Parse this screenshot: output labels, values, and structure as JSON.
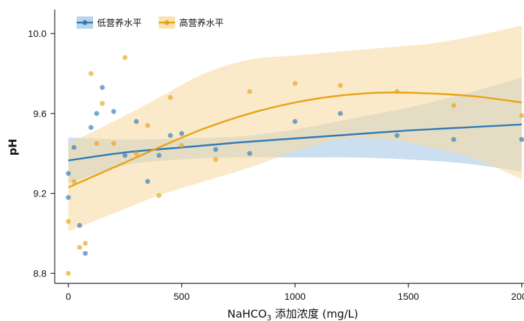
{
  "chart_data": {
    "type": "scatter",
    "xlabel": {
      "prefix": "NaHCO",
      "sub": "3",
      "suffix": " 添加浓度 (mg/L)"
    },
    "ylabel": "pH",
    "xlim": [
      -60,
      2010
    ],
    "ylim": [
      8.75,
      10.12
    ],
    "xticks": [
      0,
      500,
      1000,
      1500,
      2000
    ],
    "yticks": [
      8.8,
      9.2,
      9.6,
      10.0
    ],
    "ytick_labels": [
      "8.8",
      "9.2",
      "9.6",
      "10.0"
    ],
    "grid": false,
    "legend_position": "top-left",
    "series": [
      {
        "name": "低营养水平",
        "color": "#2e7ab8",
        "band_color": "#a9c9e6",
        "points": [
          [
            0,
            9.3
          ],
          [
            0,
            9.18
          ],
          [
            25,
            9.43
          ],
          [
            50,
            9.04
          ],
          [
            75,
            8.9
          ],
          [
            100,
            9.53
          ],
          [
            125,
            9.6
          ],
          [
            150,
            9.73
          ],
          [
            200,
            9.61
          ],
          [
            250,
            9.39
          ],
          [
            300,
            9.56
          ],
          [
            350,
            9.26
          ],
          [
            400,
            9.39
          ],
          [
            450,
            9.49
          ],
          [
            500,
            9.5
          ],
          [
            650,
            9.42
          ],
          [
            800,
            9.4
          ],
          [
            1000,
            9.56
          ],
          [
            1200,
            9.6
          ],
          [
            1450,
            9.49
          ],
          [
            1700,
            9.47
          ],
          [
            2000,
            9.47
          ]
        ],
        "fit": [
          [
            0,
            9.365
          ],
          [
            250,
            9.405
          ],
          [
            500,
            9.43
          ],
          [
            750,
            9.455
          ],
          [
            1000,
            9.475
          ],
          [
            1250,
            9.495
          ],
          [
            1500,
            9.515
          ],
          [
            1750,
            9.53
          ],
          [
            2000,
            9.545
          ]
        ],
        "band_upper": [
          [
            0,
            9.48
          ],
          [
            250,
            9.47
          ],
          [
            500,
            9.475
          ],
          [
            750,
            9.485
          ],
          [
            1000,
            9.52
          ],
          [
            1250,
            9.575
          ],
          [
            1500,
            9.63
          ],
          [
            1750,
            9.7
          ],
          [
            2000,
            9.78
          ]
        ],
        "band_lower": [
          [
            0,
            9.25
          ],
          [
            250,
            9.34
          ],
          [
            500,
            9.37
          ],
          [
            750,
            9.38
          ],
          [
            1000,
            9.38
          ],
          [
            1250,
            9.38
          ],
          [
            1500,
            9.37
          ],
          [
            1750,
            9.35
          ],
          [
            2000,
            9.31
          ]
        ]
      },
      {
        "name": "高营养水平",
        "color": "#e8a317",
        "band_color": "#f6dca5",
        "points": [
          [
            0,
            9.06
          ],
          [
            0,
            8.8
          ],
          [
            25,
            9.26
          ],
          [
            50,
            8.93
          ],
          [
            75,
            8.95
          ],
          [
            100,
            9.8
          ],
          [
            125,
            9.45
          ],
          [
            150,
            9.65
          ],
          [
            200,
            9.45
          ],
          [
            250,
            9.88
          ],
          [
            300,
            9.4
          ],
          [
            350,
            9.54
          ],
          [
            400,
            9.19
          ],
          [
            450,
            9.68
          ],
          [
            500,
            9.44
          ],
          [
            650,
            9.37
          ],
          [
            800,
            9.71
          ],
          [
            1000,
            9.75
          ],
          [
            1200,
            9.74
          ],
          [
            1450,
            9.71
          ],
          [
            1700,
            9.64
          ],
          [
            2000,
            9.59
          ]
        ],
        "fit": [
          [
            0,
            9.23
          ],
          [
            200,
            9.33
          ],
          [
            400,
            9.43
          ],
          [
            600,
            9.525
          ],
          [
            800,
            9.6
          ],
          [
            1000,
            9.655
          ],
          [
            1200,
            9.69
          ],
          [
            1400,
            9.705
          ],
          [
            1600,
            9.7
          ],
          [
            1800,
            9.685
          ],
          [
            2000,
            9.655
          ]
        ],
        "band_upper": [
          [
            0,
            9.45
          ],
          [
            200,
            9.56
          ],
          [
            400,
            9.68
          ],
          [
            600,
            9.8
          ],
          [
            800,
            9.87
          ],
          [
            1000,
            9.89
          ],
          [
            1200,
            9.91
          ],
          [
            1400,
            9.93
          ],
          [
            1600,
            9.95
          ],
          [
            1800,
            9.99
          ],
          [
            2000,
            10.04
          ]
        ],
        "band_lower": [
          [
            0,
            9.01
          ],
          [
            200,
            9.1
          ],
          [
            400,
            9.19
          ],
          [
            600,
            9.26
          ],
          [
            800,
            9.33
          ],
          [
            1000,
            9.41
          ],
          [
            1200,
            9.47
          ],
          [
            1400,
            9.47
          ],
          [
            1600,
            9.43
          ],
          [
            1800,
            9.37
          ],
          [
            2000,
            9.27
          ]
        ]
      }
    ]
  }
}
